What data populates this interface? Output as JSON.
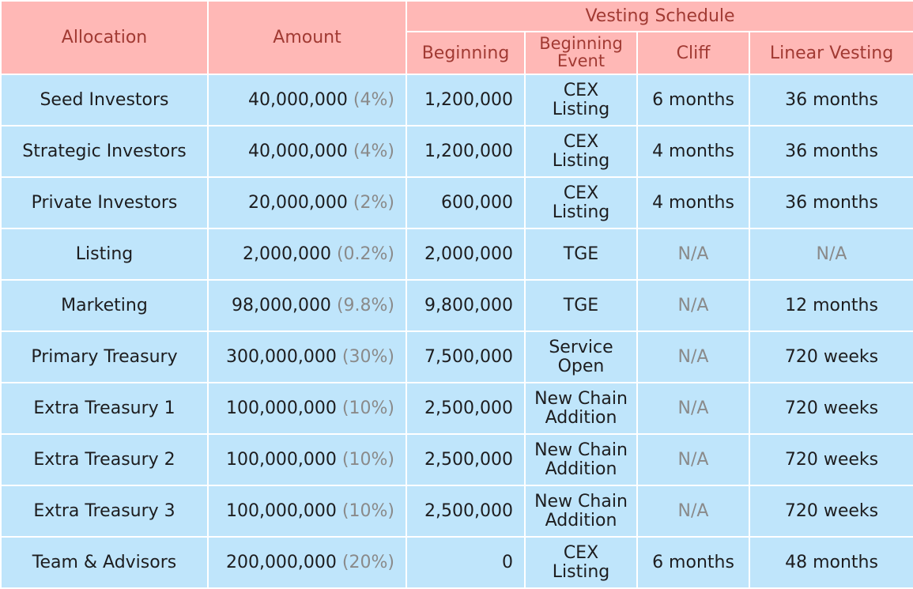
{
  "header": {
    "allocation": "Allocation",
    "amount": "Amount",
    "vesting_schedule": "Vesting Schedule",
    "beginning": "Beginning",
    "beginning_event_line1": "Beginning",
    "beginning_event_line2": "Event",
    "cliff": "Cliff",
    "linear_vesting": "Linear Vesting"
  },
  "rows": [
    {
      "allocation": "Seed Investors",
      "amount": "40,000,000",
      "pct": "(4%)",
      "beginning": "1,200,000",
      "event1": "CEX",
      "event2": "Listing",
      "cliff": "6 months",
      "cliff_na": false,
      "linear": "36 months",
      "linear_na": false
    },
    {
      "allocation": "Strategic Investors",
      "amount": "40,000,000",
      "pct": "(4%)",
      "beginning": "1,200,000",
      "event1": "CEX",
      "event2": "Listing",
      "cliff": "4 months",
      "cliff_na": false,
      "linear": "36 months",
      "linear_na": false
    },
    {
      "allocation": "Private Investors",
      "amount": "20,000,000",
      "pct": "(2%)",
      "beginning": "600,000",
      "event1": "CEX",
      "event2": "Listing",
      "cliff": "4 months",
      "cliff_na": false,
      "linear": "36 months",
      "linear_na": false
    },
    {
      "allocation": "Listing",
      "amount": "2,000,000",
      "pct": "(0.2%)",
      "beginning": "2,000,000",
      "event1": "TGE",
      "event2": "",
      "cliff": "N/A",
      "cliff_na": true,
      "linear": "N/A",
      "linear_na": true
    },
    {
      "allocation": "Marketing",
      "amount": "98,000,000",
      "pct": "(9.8%)",
      "beginning": "9,800,000",
      "event1": "TGE",
      "event2": "",
      "cliff": "N/A",
      "cliff_na": true,
      "linear": "12 months",
      "linear_na": false
    },
    {
      "allocation": "Primary Treasury",
      "amount": "300,000,000",
      "pct": "(30%)",
      "beginning": "7,500,000",
      "event1": "Service",
      "event2": "Open",
      "cliff": "N/A",
      "cliff_na": true,
      "linear": "720 weeks",
      "linear_na": false
    },
    {
      "allocation": "Extra Treasury 1",
      "amount": "100,000,000",
      "pct": "(10%)",
      "beginning": "2,500,000",
      "event1": "New Chain",
      "event2": "Addition",
      "cliff": "N/A",
      "cliff_na": true,
      "linear": "720 weeks",
      "linear_na": false
    },
    {
      "allocation": "Extra Treasury 2",
      "amount": "100,000,000",
      "pct": "(10%)",
      "beginning": "2,500,000",
      "event1": "New Chain",
      "event2": "Addition",
      "cliff": "N/A",
      "cliff_na": true,
      "linear": "720 weeks",
      "linear_na": false
    },
    {
      "allocation": "Extra Treasury 3",
      "amount": "100,000,000",
      "pct": "(10%)",
      "beginning": "2,500,000",
      "event1": "New Chain",
      "event2": "Addition",
      "cliff": "N/A",
      "cliff_na": true,
      "linear": "720 weeks",
      "linear_na": false
    },
    {
      "allocation": "Team & Advisors",
      "amount": "200,000,000",
      "pct": "(20%)",
      "beginning": "0",
      "event1": "CEX",
      "event2": "Listing",
      "cliff": "6 months",
      "cliff_na": false,
      "linear": "48 months",
      "linear_na": false
    }
  ],
  "colors": {
    "header_bg": "#ffb8b6",
    "header_text": "#a13a33",
    "body_bg": "#bfe5fb",
    "muted_text": "#8a8a8a"
  }
}
